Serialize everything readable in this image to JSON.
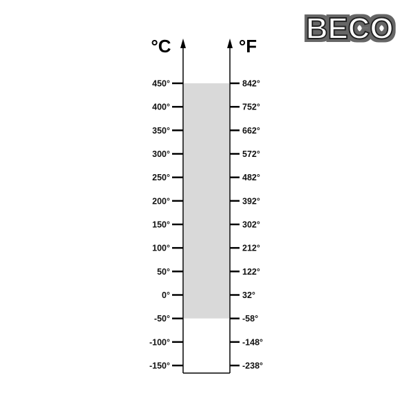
{
  "logo": {
    "text": "BECO"
  },
  "units": {
    "left": "°C",
    "right": "°F"
  },
  "scale": {
    "celsius_labels": [
      "450°",
      "400°",
      "350°",
      "300°",
      "250°",
      "200°",
      "150°",
      "100°",
      "50°",
      "0°",
      "-50°",
      "-100°",
      "-150°"
    ],
    "fahrenheit_labels": [
      "842°",
      "752°",
      "662°",
      "572°",
      "482°",
      "392°",
      "302°",
      "212°",
      "122°",
      "32°",
      "-58°",
      "-148°",
      "-238°"
    ],
    "celsius_values": [
      450,
      400,
      350,
      300,
      250,
      200,
      150,
      100,
      50,
      0,
      -50,
      -100,
      -150
    ],
    "range_celsius": [
      -50,
      450
    ]
  },
  "colors": {
    "range_fill": "#d9d9d9",
    "line": "#000000"
  }
}
